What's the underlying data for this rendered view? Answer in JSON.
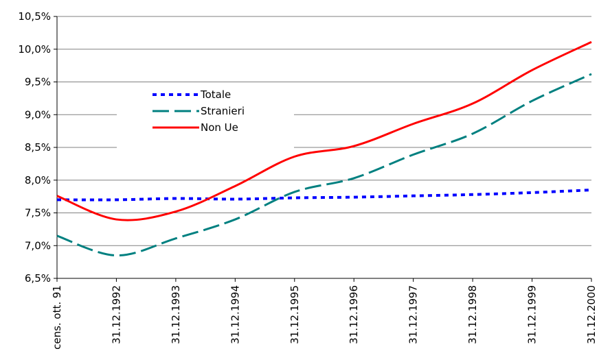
{
  "chart_data": {
    "type": "line",
    "title": "",
    "xlabel": "",
    "ylabel": "",
    "categories": [
      "cens. ott. 91",
      "31.12.1992",
      "31.12.1993",
      "31.12.1994",
      "31.12.1995",
      "31.12.1996",
      "31.12.1997",
      "31.12.1998",
      "31.12.1999",
      "31.12.2000"
    ],
    "ylim": [
      0.065,
      0.105
    ],
    "yticks": [
      0.065,
      0.07,
      0.075,
      0.08,
      0.085,
      0.09,
      0.095,
      0.1,
      0.105
    ],
    "ytick_labels": [
      "6,5%",
      "7,0%",
      "7,5%",
      "8,0%",
      "8,5%",
      "9,0%",
      "9,5%",
      "10,0%",
      "10,5%"
    ],
    "grid": "horizontal",
    "legend_position": "upper-left inside plot",
    "series": [
      {
        "name": "Totale",
        "color": "#0000ff",
        "style": "dotted",
        "values": [
          0.077,
          0.077,
          0.0772,
          0.0771,
          0.0773,
          0.0774,
          0.0776,
          0.0778,
          0.0781,
          0.0785
        ]
      },
      {
        "name": "Stranieri",
        "color": "#008080",
        "style": "dashed",
        "values": [
          0.0715,
          0.0685,
          0.0711,
          0.074,
          0.0782,
          0.0803,
          0.0839,
          0.0871,
          0.0921,
          0.0962
        ]
      },
      {
        "name": "Non Ue",
        "color": "#ff0000",
        "style": "solid",
        "values": [
          0.0776,
          0.074,
          0.0752,
          0.0791,
          0.0836,
          0.0852,
          0.0886,
          0.0917,
          0.0968,
          0.1011
        ]
      }
    ]
  }
}
